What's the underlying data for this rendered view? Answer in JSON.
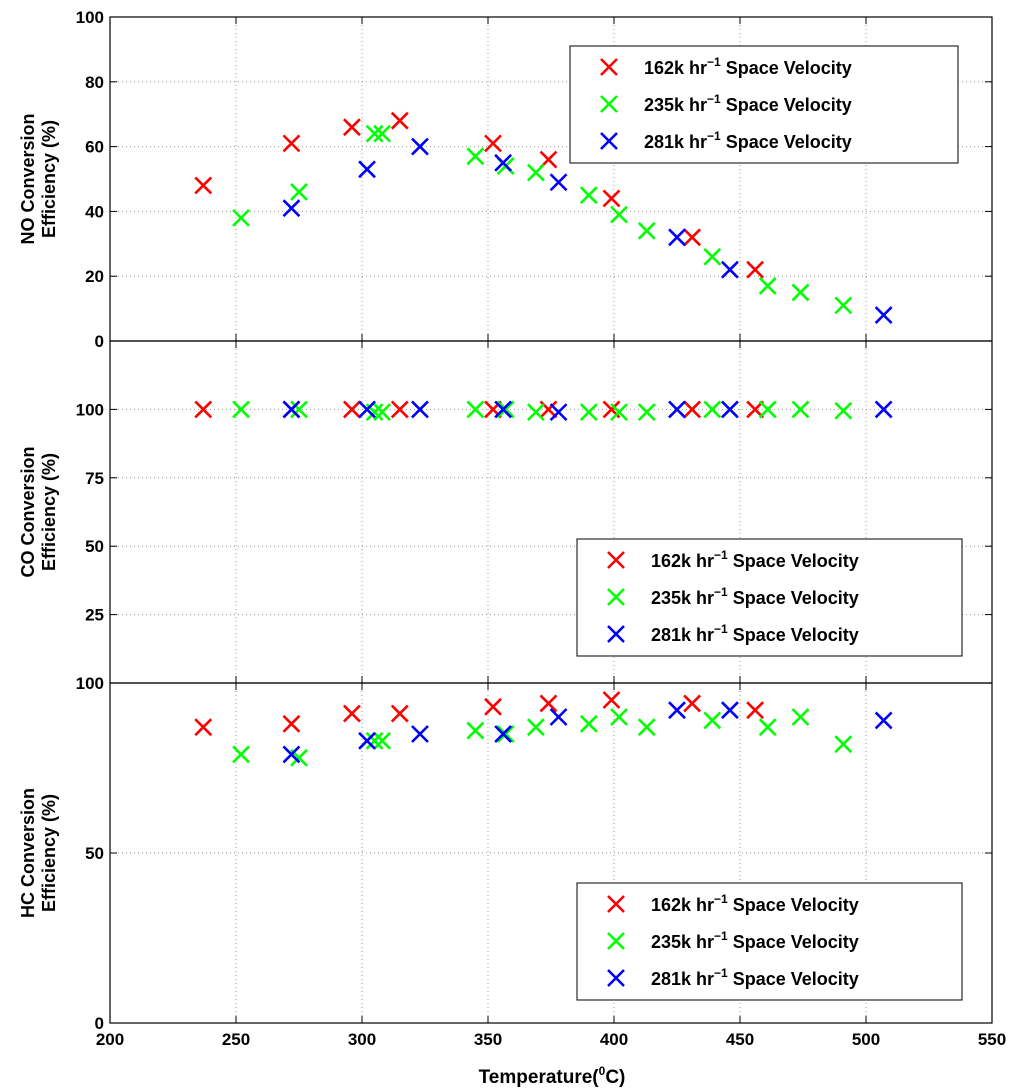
{
  "figure": {
    "xlabel_main": "Temperature(",
    "xlabel_sup": "0",
    "xlabel_end": "C)",
    "x_ticks": [
      "200",
      "250",
      "300",
      "350",
      "400",
      "450",
      "500",
      "550"
    ]
  },
  "chart_data": [
    {
      "type": "scatter",
      "ylabel_line1": "NO Conversion",
      "ylabel_line2": "Efficiency (%)",
      "xlim": [
        200,
        550
      ],
      "ylim": [
        0,
        100
      ],
      "x_ticks": [
        200,
        250,
        300,
        350,
        400,
        450,
        500,
        550
      ],
      "y_ticks": [
        0,
        20,
        40,
        60,
        80,
        100
      ],
      "y_tick_labels": [
        "0",
        "20",
        "40",
        "60",
        "80",
        "100"
      ],
      "grid": true,
      "legend_position": "top-right",
      "series": [
        {
          "name_prefix": "162k hr",
          "name_sup": "−1",
          "name_suffix": " Space Velocity",
          "color": "#ff0000",
          "marker": "x",
          "x": [
            237,
            272,
            296,
            315,
            352,
            374,
            399,
            431,
            456
          ],
          "y": [
            48,
            61,
            66,
            68,
            61,
            56,
            44,
            32,
            22
          ]
        },
        {
          "name_prefix": "235k hr",
          "name_sup": "−1",
          "name_suffix": " Space Velocity",
          "color": "#00ff00",
          "marker": "x",
          "x": [
            252,
            275,
            305,
            308,
            345,
            357,
            369,
            390,
            402,
            413,
            439,
            461,
            474,
            491
          ],
          "y": [
            38,
            46,
            64,
            64,
            57,
            54,
            52,
            45,
            39,
            34,
            26,
            17,
            15,
            11
          ],
          "sup": "−1"
        },
        {
          "name_prefix": "281k hr",
          "name_sup": "−1",
          "name_suffix": " Space Velocity",
          "color": "#0000ff",
          "marker": "x",
          "x": [
            272,
            302,
            323,
            356,
            378,
            425,
            446,
            507
          ],
          "y": [
            41,
            53,
            60,
            55,
            49,
            32,
            22,
            8
          ]
        }
      ]
    },
    {
      "type": "scatter",
      "ylabel_line1": "CO Conversion",
      "ylabel_line2": "Efficiency (%)",
      "xlim": [
        200,
        550
      ],
      "ylim": [
        0,
        125
      ],
      "x_ticks": [
        200,
        250,
        300,
        350,
        400,
        450,
        500,
        550
      ],
      "y_ticks": [
        25,
        50,
        75,
        100
      ],
      "y_tick_labels": [
        "25",
        "50",
        "75",
        "100"
      ],
      "grid": true,
      "legend_position": "bottom-right",
      "series": [
        {
          "name_prefix": "162k hr",
          "name_sup": "−1",
          "name_suffix": " Space Velocity",
          "color": "#ff0000",
          "marker": "x",
          "x": [
            237,
            272,
            296,
            315,
            352,
            374,
            399,
            431,
            456
          ],
          "y": [
            100,
            100,
            100,
            100,
            100,
            100,
            100,
            100,
            100
          ]
        },
        {
          "name_prefix": "235k hr",
          "name_sup": "−1",
          "name_suffix": " Space Velocity",
          "color": "#00ff00",
          "marker": "x",
          "x": [
            252,
            275,
            305,
            308,
            345,
            357,
            369,
            390,
            402,
            413,
            439,
            461,
            474,
            491
          ],
          "y": [
            100,
            100,
            99,
            99,
            100,
            100,
            99,
            99,
            99,
            99,
            100,
            100,
            100,
            99.5
          ]
        },
        {
          "name_prefix": "281k hr",
          "name_sup": "−1",
          "name_suffix": " Space Velocity",
          "color": "#0000ff",
          "marker": "x",
          "x": [
            272,
            302,
            323,
            356,
            378,
            425,
            446,
            507
          ],
          "y": [
            100,
            100,
            100,
            100,
            99,
            100,
            100,
            100
          ]
        }
      ]
    },
    {
      "type": "scatter",
      "ylabel_line1": "HC Conversion",
      "ylabel_line2": "Efficiency (%)",
      "xlim": [
        200,
        550
      ],
      "ylim": [
        0,
        100
      ],
      "x_ticks": [
        200,
        250,
        300,
        350,
        400,
        450,
        500,
        550
      ],
      "y_ticks": [
        0,
        50,
        100
      ],
      "y_tick_labels": [
        "0",
        "50",
        "100"
      ],
      "grid": true,
      "legend_position": "bottom-right",
      "series": [
        {
          "name_prefix": "162k hr",
          "name_sup": "−1",
          "name_suffix": " Space Velocity",
          "color": "#ff0000",
          "marker": "x",
          "x": [
            237,
            272,
            296,
            315,
            352,
            374,
            399,
            431,
            456
          ],
          "y": [
            87,
            88,
            91,
            91,
            93,
            94,
            95,
            94,
            92
          ]
        },
        {
          "name_prefix": "235k hr",
          "name_sup": "−1",
          "name_suffix": " Space Velocity",
          "color": "#00ff00",
          "marker": "x",
          "x": [
            252,
            275,
            305,
            308,
            345,
            357,
            369,
            390,
            402,
            413,
            439,
            461,
            474,
            491
          ],
          "y": [
            79,
            78,
            83,
            83,
            86,
            85,
            87,
            88,
            90,
            87,
            89,
            87,
            90,
            82
          ]
        },
        {
          "name_prefix": "281k hr",
          "name_sup": "−1",
          "name_suffix": " Space Velocity",
          "color": "#0000ff",
          "marker": "x",
          "x": [
            272,
            302,
            323,
            356,
            378,
            425,
            446,
            507
          ],
          "y": [
            79,
            83,
            85,
            85,
            90,
            92,
            92,
            89
          ]
        }
      ]
    }
  ]
}
